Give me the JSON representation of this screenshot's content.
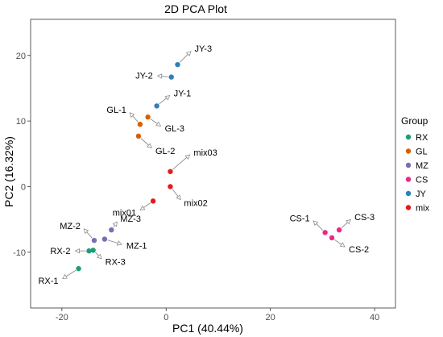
{
  "chart_data": {
    "type": "scatter",
    "title": "2D PCA Plot",
    "xlabel": "PC1 (40.44%)",
    "ylabel": "PC2 (16.32%)",
    "xlim": [
      -26,
      44
    ],
    "ylim": [
      -18.5,
      25.5
    ],
    "xticks": [
      -20,
      0,
      20,
      40
    ],
    "yticks": [
      -10,
      0,
      10,
      20
    ],
    "grid": false,
    "legend": {
      "title": "Group",
      "placement": "right"
    },
    "series": [
      {
        "name": "RX",
        "color": "#1b9e77",
        "points": [
          {
            "label": "RX-1",
            "x": -16.8,
            "y": -12.5
          },
          {
            "label": "RX-2",
            "x": -14.8,
            "y": -9.8
          },
          {
            "label": "RX-3",
            "x": -14.0,
            "y": -9.7
          }
        ]
      },
      {
        "name": "GL",
        "color": "#d95f02",
        "points": [
          {
            "label": "GL-1",
            "x": -5.0,
            "y": 9.5
          },
          {
            "label": "GL-2",
            "x": -5.3,
            "y": 7.7
          },
          {
            "label": "GL-3",
            "x": -3.5,
            "y": 10.6
          }
        ]
      },
      {
        "name": "MZ",
        "color": "#7570b3",
        "points": [
          {
            "label": "MZ-1",
            "x": -11.8,
            "y": -8.0
          },
          {
            "label": "MZ-2",
            "x": -13.8,
            "y": -8.2
          },
          {
            "label": "MZ-3",
            "x": -10.5,
            "y": -6.6
          }
        ]
      },
      {
        "name": "CS",
        "color": "#e7298a",
        "points": [
          {
            "label": "CS-1",
            "x": 30.5,
            "y": -7.0
          },
          {
            "label": "CS-2",
            "x": 31.8,
            "y": -7.8
          },
          {
            "label": "CS-3",
            "x": 33.2,
            "y": -6.6
          }
        ]
      },
      {
        "name": "JY",
        "color": "#2f80b6",
        "points": [
          {
            "label": "JY-1",
            "x": -1.8,
            "y": 12.3
          },
          {
            "label": "JY-2",
            "x": 1.0,
            "y": 16.7
          },
          {
            "label": "JY-3",
            "x": 2.2,
            "y": 18.6
          }
        ]
      },
      {
        "name": "mix",
        "color": "#e41a1c",
        "points": [
          {
            "label": "mix01",
            "x": -2.5,
            "y": -2.2
          },
          {
            "label": "mix02",
            "x": 0.8,
            "y": 0.0
          },
          {
            "label": "mix03",
            "x": 0.8,
            "y": 2.3
          }
        ]
      }
    ]
  }
}
